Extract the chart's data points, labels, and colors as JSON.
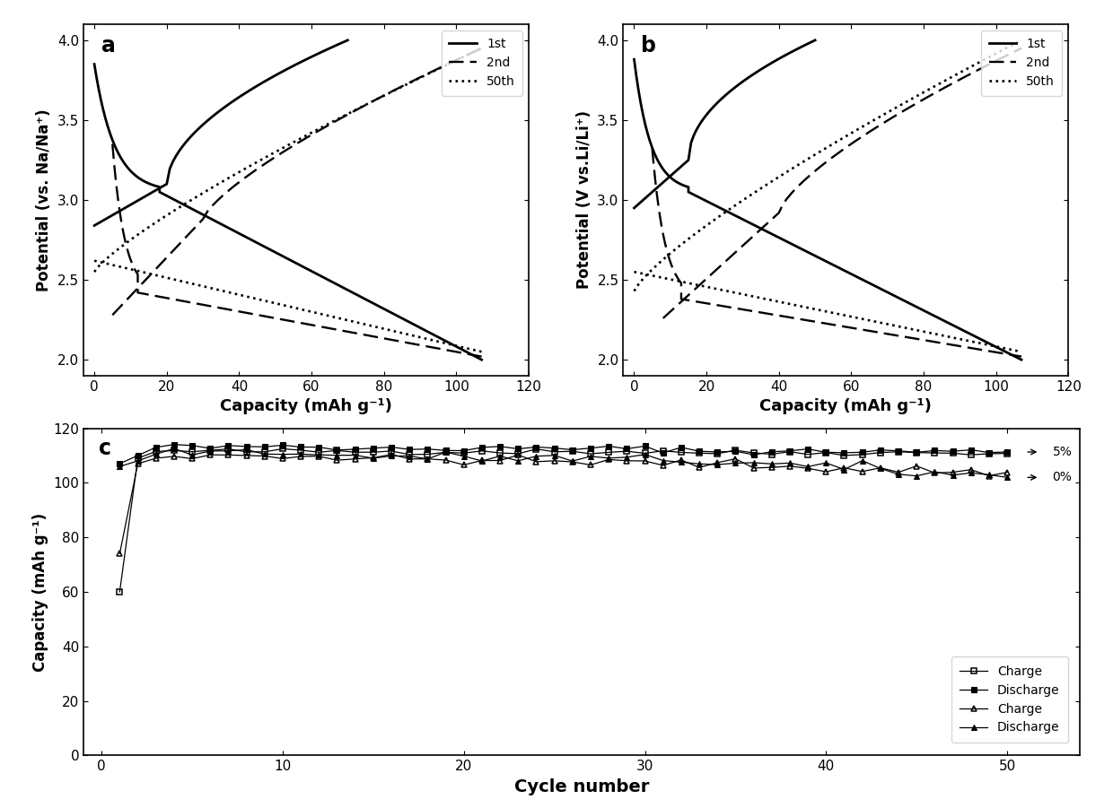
{
  "panel_a": {
    "label": "a",
    "ylabel": "Potential (vs. Na/Na⁺)",
    "xlabel": "Capacity (mAh g⁻¹)",
    "xlim": [
      -3,
      120
    ],
    "ylim": [
      1.9,
      4.1
    ],
    "xticks": [
      0,
      20,
      40,
      60,
      80,
      100,
      120
    ],
    "yticks": [
      2.0,
      2.5,
      3.0,
      3.5,
      4.0
    ]
  },
  "panel_b": {
    "label": "b",
    "ylabel": "Potential (V vs.Li/Li⁺)",
    "xlabel": "Capacity (mAh g⁻¹)",
    "xlim": [
      -3,
      120
    ],
    "ylim": [
      1.9,
      4.1
    ],
    "xticks": [
      0,
      20,
      40,
      60,
      80,
      100,
      120
    ],
    "yticks": [
      2.0,
      2.5,
      3.0,
      3.5,
      4.0
    ]
  },
  "panel_c": {
    "label": "c",
    "ylabel": "Capacity (mAh g⁻¹)",
    "xlabel": "Cycle number",
    "xlim": [
      -1,
      54
    ],
    "ylim": [
      0,
      120
    ],
    "xticks": [
      0,
      10,
      20,
      30,
      40,
      50
    ],
    "yticks": [
      0,
      20,
      40,
      60,
      80,
      100,
      120
    ]
  },
  "line_color": "#000000",
  "legend_fontsize": 10,
  "label_fontsize": 13,
  "tick_fontsize": 11
}
